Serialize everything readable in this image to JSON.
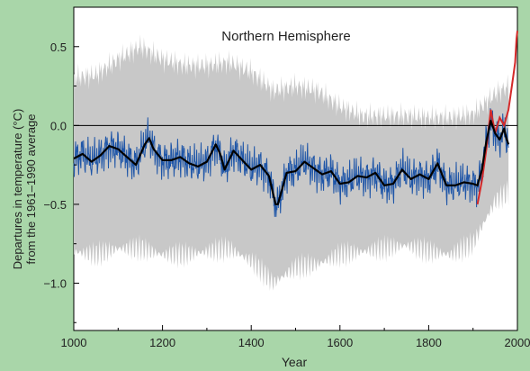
{
  "colors": {
    "background": "#a9d6a9",
    "plot_bg": "#ffffff",
    "uncertainty": "#c8c8c8",
    "proxy": "#1f56a8",
    "smooth": "#000000",
    "instrumental": "#d42a2a",
    "zero_line": "#000000"
  },
  "chart_data": {
    "type": "line",
    "title": "Northern Hemisphere",
    "xlabel": "Year",
    "ylabel_lines": [
      "Departures in temperature (°C)",
      "from the 1961–1990 average"
    ],
    "xlim": [
      1000,
      2000
    ],
    "ylim": [
      -1.3,
      0.75
    ],
    "x_ticks": [
      1000,
      1200,
      1400,
      1600,
      1800,
      2000
    ],
    "x_tick_labels": [
      "1000",
      "1200",
      "1400",
      "1600",
      "1800",
      "2000"
    ],
    "y_ticks": [
      0.5,
      0.0,
      -0.5,
      -1.0
    ],
    "y_tick_labels": [
      "0.5",
      "0.0",
      "−0.5",
      "−1.0"
    ],
    "reference_line": 0.0,
    "uncertainty_band": {
      "years": [
        1000,
        1050,
        1100,
        1150,
        1200,
        1250,
        1300,
        1350,
        1400,
        1450,
        1500,
        1550,
        1600,
        1650,
        1700,
        1750,
        1800,
        1850,
        1900,
        1950,
        1980
      ],
      "upper": [
        0.3,
        0.32,
        0.42,
        0.5,
        0.42,
        0.38,
        0.38,
        0.4,
        0.34,
        0.22,
        0.25,
        0.22,
        0.12,
        0.06,
        0.06,
        0.06,
        0.05,
        0.05,
        0.07,
        0.2,
        0.25
      ],
      "lower": [
        -0.8,
        -0.82,
        -0.78,
        -0.78,
        -0.82,
        -0.82,
        -0.8,
        -0.78,
        -0.86,
        -1.0,
        -0.9,
        -0.88,
        -0.82,
        -0.8,
        -0.78,
        -0.76,
        -0.8,
        -0.82,
        -0.75,
        -0.48,
        -0.42
      ]
    },
    "series": [
      {
        "role": "smoothed",
        "x": [
          1000,
          1020,
          1040,
          1060,
          1080,
          1100,
          1120,
          1140,
          1160,
          1170,
          1180,
          1200,
          1220,
          1240,
          1260,
          1280,
          1300,
          1320,
          1330,
          1340,
          1360,
          1380,
          1400,
          1420,
          1440,
          1455,
          1460,
          1480,
          1500,
          1520,
          1540,
          1560,
          1580,
          1600,
          1620,
          1640,
          1660,
          1680,
          1700,
          1720,
          1740,
          1760,
          1780,
          1800,
          1820,
          1840,
          1860,
          1880,
          1900,
          1910,
          1920,
          1930,
          1940,
          1950,
          1960,
          1970,
          1975,
          1980
        ],
        "y": [
          -0.21,
          -0.18,
          -0.23,
          -0.19,
          -0.13,
          -0.15,
          -0.2,
          -0.25,
          -0.12,
          -0.08,
          -0.15,
          -0.22,
          -0.22,
          -0.2,
          -0.24,
          -0.26,
          -0.23,
          -0.12,
          -0.18,
          -0.28,
          -0.16,
          -0.22,
          -0.28,
          -0.25,
          -0.32,
          -0.5,
          -0.5,
          -0.3,
          -0.29,
          -0.23,
          -0.27,
          -0.31,
          -0.29,
          -0.37,
          -0.36,
          -0.32,
          -0.33,
          -0.3,
          -0.38,
          -0.37,
          -0.28,
          -0.34,
          -0.31,
          -0.34,
          -0.24,
          -0.38,
          -0.38,
          -0.36,
          -0.37,
          -0.38,
          -0.28,
          -0.1,
          0.03,
          -0.05,
          -0.09,
          -0.02,
          -0.08,
          -0.12
        ]
      },
      {
        "role": "instrumental",
        "x": [
          1910,
          1920,
          1930,
          1940,
          1950,
          1960,
          1970,
          1980,
          1985,
          1990,
          1995,
          1998,
          2000
        ],
        "y": [
          -0.5,
          -0.35,
          -0.15,
          0.1,
          -0.05,
          0.05,
          0.0,
          0.1,
          0.2,
          0.3,
          0.4,
          0.55,
          0.6
        ]
      }
    ],
    "proxy_series": {
      "role": "annual proxy reconstruction",
      "follows": "smoothed",
      "range_x": [
        1000,
        1980
      ],
      "noise_amplitude": 0.1
    }
  }
}
